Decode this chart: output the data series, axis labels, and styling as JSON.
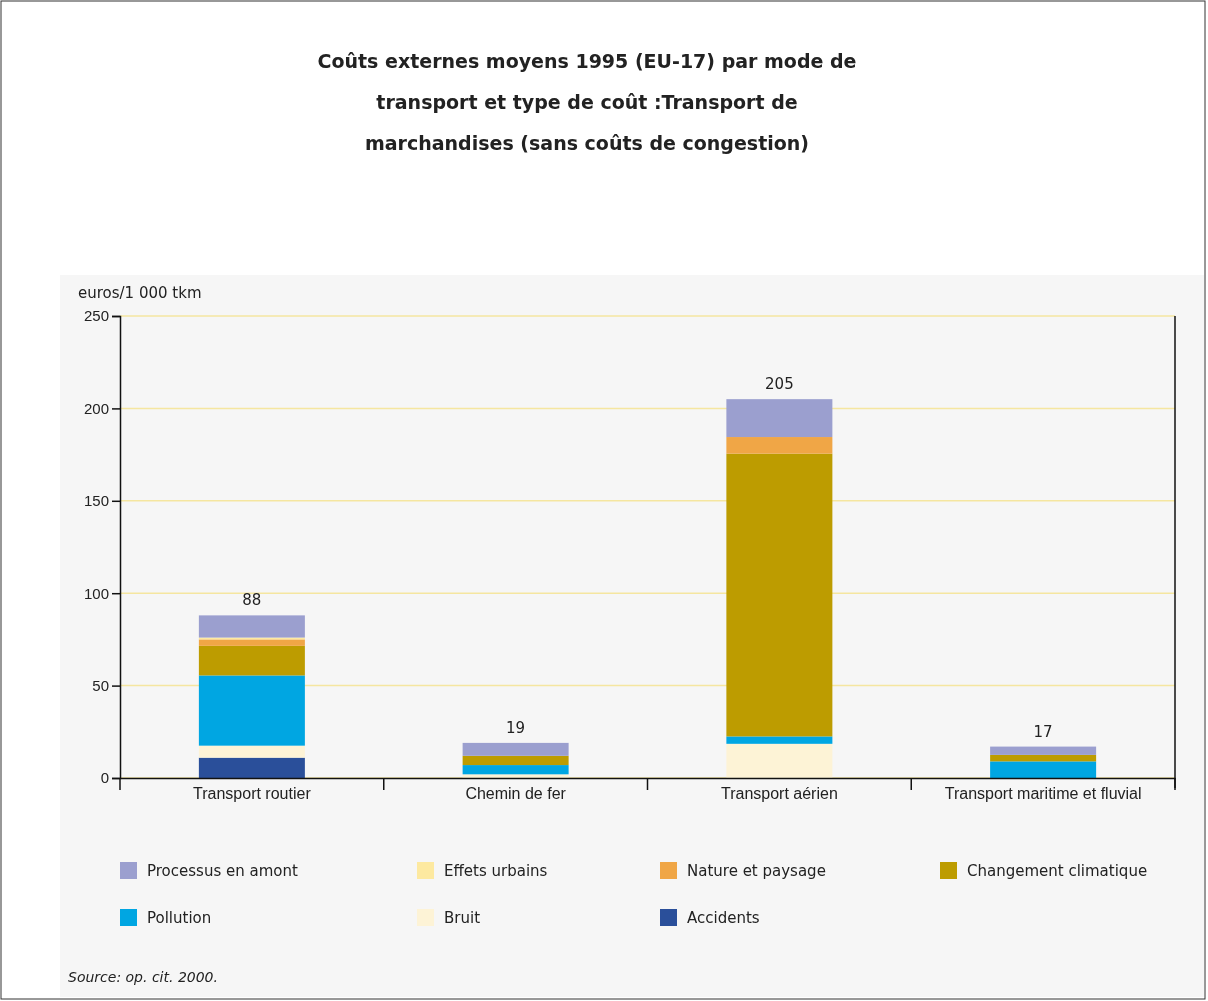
{
  "chart_data": {
    "type": "bar",
    "stacked": true,
    "title": "Coûts externes moyens 1995 (EU-17) par mode de transport et type de coût :Transport de marchandises (sans coûts de congestion)",
    "ylabel": "euros/1 000 tkm",
    "categories": [
      "Transport routier",
      "Chemin de fer",
      "Transport aérien",
      "Transport maritime et fluvial"
    ],
    "series": [
      {
        "name": "Accidents",
        "color": "#2a4f9a",
        "values": [
          11,
          0,
          0,
          0
        ]
      },
      {
        "name": "Bruit",
        "color": "#fdf3d6",
        "values": [
          6.5,
          2,
          18.5,
          0
        ]
      },
      {
        "name": "Pollution",
        "color": "#00a6e2",
        "values": [
          38,
          5,
          4,
          9
        ]
      },
      {
        "name": "Changement climatique",
        "color": "#bd9c00",
        "values": [
          16,
          5,
          153,
          3.5
        ]
      },
      {
        "name": "Nature et paysage",
        "color": "#f0a646",
        "values": [
          3.5,
          0,
          9,
          0
        ]
      },
      {
        "name": "Effets urbains",
        "color": "#fde9a0",
        "values": [
          1,
          0,
          0,
          0
        ]
      },
      {
        "name": "Processus en amont",
        "color": "#9b9fcf",
        "values": [
          12,
          7,
          20.5,
          4.5
        ]
      }
    ],
    "totals": [
      "88",
      "19",
      "205",
      "17"
    ],
    "ylim": [
      0,
      250
    ],
    "yticks": [
      0,
      50,
      100,
      150,
      200,
      250
    ],
    "grid": "y",
    "legend": "bottom",
    "annotations": [
      "Source: op. cit. 2000."
    ]
  }
}
